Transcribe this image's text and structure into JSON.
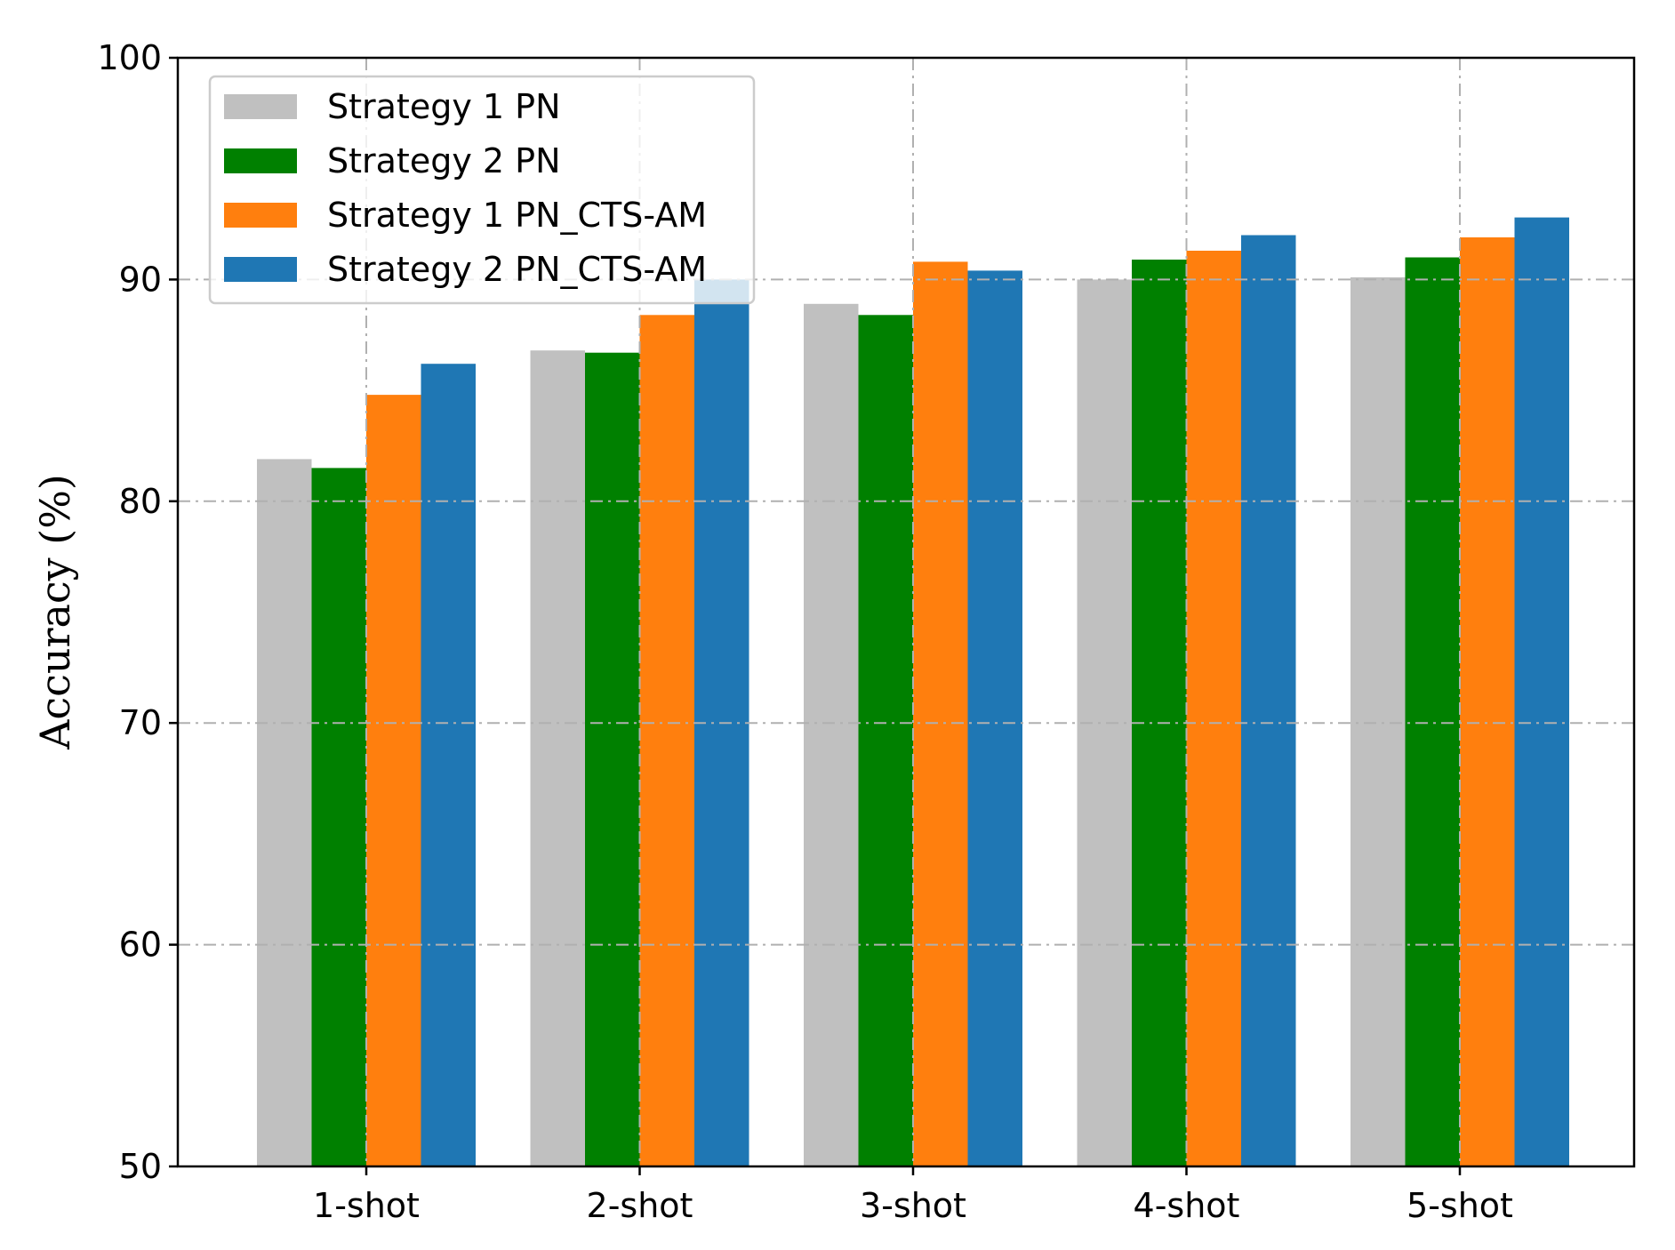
{
  "chart_data": {
    "type": "bar",
    "title": "",
    "xlabel": "",
    "ylabel": "Accuracy (%)",
    "categories": [
      "1-shot",
      "2-shot",
      "3-shot",
      "4-shot",
      "5-shot"
    ],
    "ylim": [
      50,
      100
    ],
    "yticks": [
      "50",
      "60",
      "70",
      "80",
      "90",
      "100"
    ],
    "grid": true,
    "legend_position": "top-left",
    "series": [
      {
        "name": "Strategy 1 PN",
        "color": "#c0c0c0",
        "values": [
          81.9,
          86.8,
          88.9,
          90.0,
          90.1
        ]
      },
      {
        "name": "Strategy 2 PN",
        "color": "#008000",
        "values": [
          81.5,
          86.7,
          88.4,
          90.9,
          91.0
        ]
      },
      {
        "name": "Strategy 1 PN_CTS-AM",
        "color": "#ff7f0e",
        "values": [
          84.8,
          88.4,
          90.8,
          91.3,
          91.9
        ]
      },
      {
        "name": "Strategy 2 PN_CTS-AM",
        "color": "#1f77b4",
        "values": [
          86.2,
          90.0,
          90.4,
          92.0,
          92.8
        ]
      }
    ]
  }
}
